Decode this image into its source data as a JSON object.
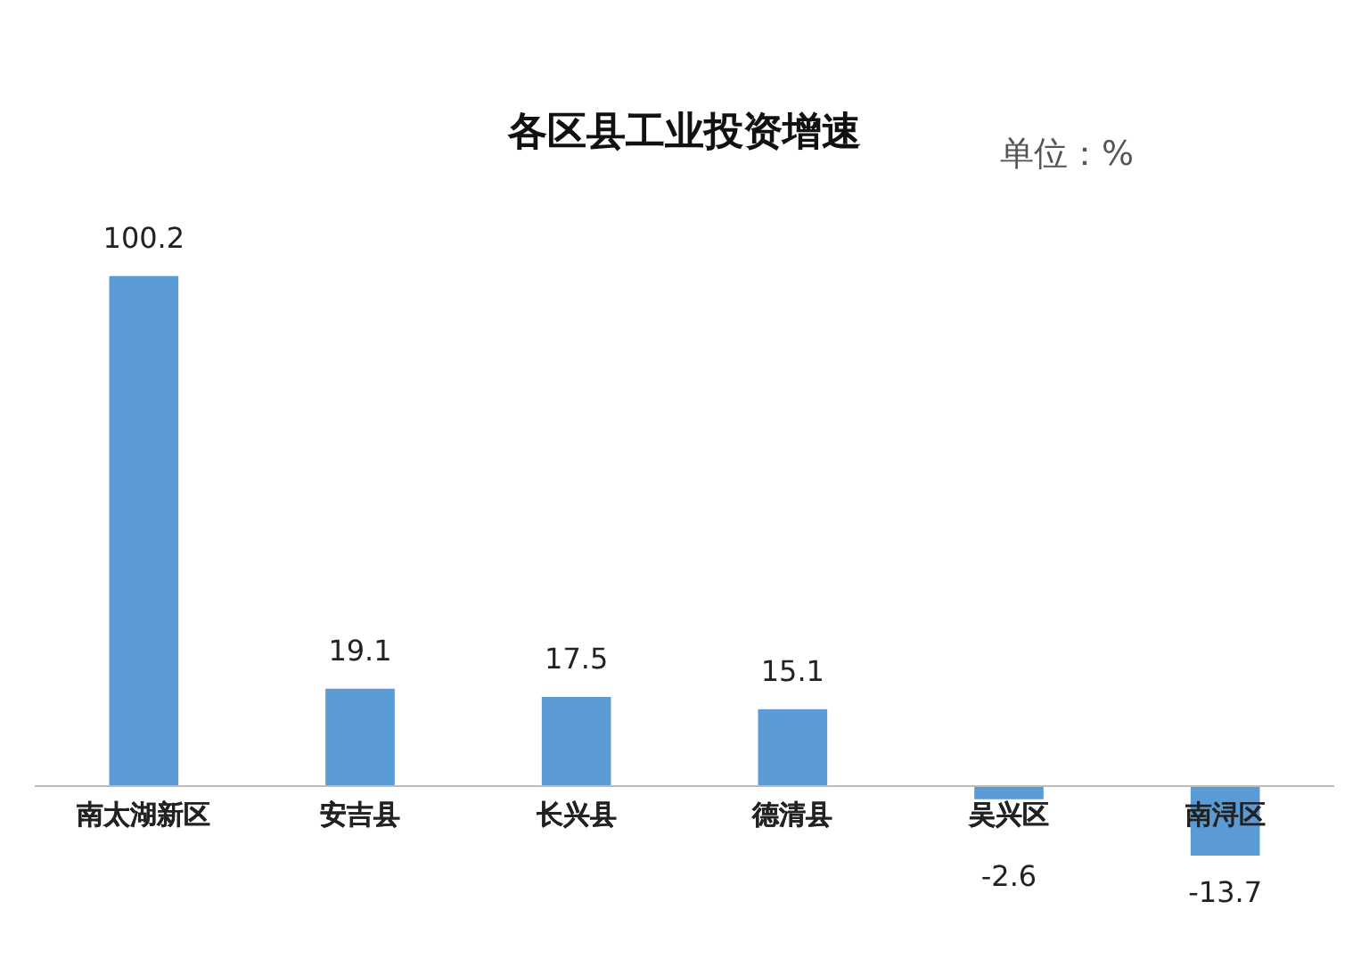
{
  "chart_data": {
    "type": "bar",
    "title": "各区县工业投资增速",
    "categories": [
      "南太湖新区",
      "安吉县",
      "长兴县",
      "德清县",
      "吴兴区",
      "南浔区"
    ],
    "values": [
      100.2,
      19.1,
      17.5,
      15.1,
      -2.6,
      -13.7
    ],
    "color": "#5b9bd5",
    "data_labels": true,
    "grid": false,
    "legend": false,
    "annotations": [
      "单位：%"
    ]
  }
}
